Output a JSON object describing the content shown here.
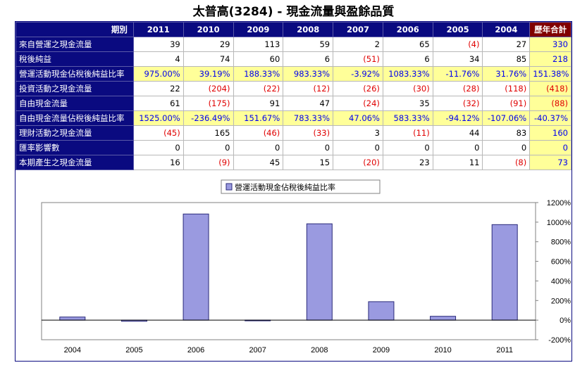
{
  "title": "太普高(3284) -  現金流量與盈餘品質",
  "table": {
    "corner": "期別",
    "years": [
      "2011",
      "2010",
      "2009",
      "2008",
      "2007",
      "2006",
      "2005",
      "2004"
    ],
    "total_header": "歷年合計",
    "rows": [
      {
        "label": "來自營運之現金流量",
        "highlight": false,
        "cells": [
          {
            "t": "39",
            "c": "black"
          },
          {
            "t": "29",
            "c": "black"
          },
          {
            "t": "113",
            "c": "black"
          },
          {
            "t": "59",
            "c": "black"
          },
          {
            "t": "2",
            "c": "black"
          },
          {
            "t": "65",
            "c": "black"
          },
          {
            "t": "(4)",
            "c": "red"
          },
          {
            "t": "27",
            "c": "black"
          }
        ],
        "total": {
          "t": "330",
          "c": "blue"
        }
      },
      {
        "label": "稅後純益",
        "highlight": false,
        "cells": [
          {
            "t": "4",
            "c": "black"
          },
          {
            "t": "74",
            "c": "black"
          },
          {
            "t": "60",
            "c": "black"
          },
          {
            "t": "6",
            "c": "black"
          },
          {
            "t": "(51)",
            "c": "red"
          },
          {
            "t": "6",
            "c": "black"
          },
          {
            "t": "34",
            "c": "black"
          },
          {
            "t": "85",
            "c": "black"
          }
        ],
        "total": {
          "t": "218",
          "c": "blue"
        }
      },
      {
        "label": "營運活動現金佔稅後純益比率",
        "highlight": true,
        "cells": [
          {
            "t": "975.00%",
            "c": "blue"
          },
          {
            "t": "39.19%",
            "c": "blue"
          },
          {
            "t": "188.33%",
            "c": "blue"
          },
          {
            "t": "983.33%",
            "c": "blue"
          },
          {
            "t": "-3.92%",
            "c": "blue"
          },
          {
            "t": "1083.33%",
            "c": "blue"
          },
          {
            "t": "-11.76%",
            "c": "blue"
          },
          {
            "t": "31.76%",
            "c": "blue"
          }
        ],
        "total": {
          "t": "151.38%",
          "c": "blue"
        }
      },
      {
        "label": "投資活動之現金流量",
        "highlight": false,
        "cells": [
          {
            "t": "22",
            "c": "black"
          },
          {
            "t": "(204)",
            "c": "red"
          },
          {
            "t": "(22)",
            "c": "red"
          },
          {
            "t": "(12)",
            "c": "red"
          },
          {
            "t": "(26)",
            "c": "red"
          },
          {
            "t": "(30)",
            "c": "red"
          },
          {
            "t": "(28)",
            "c": "red"
          },
          {
            "t": "(118)",
            "c": "red"
          }
        ],
        "total": {
          "t": "(418)",
          "c": "red"
        }
      },
      {
        "label": "自由現金流量",
        "highlight": false,
        "cells": [
          {
            "t": "61",
            "c": "black"
          },
          {
            "t": "(175)",
            "c": "red"
          },
          {
            "t": "91",
            "c": "black"
          },
          {
            "t": "47",
            "c": "black"
          },
          {
            "t": "(24)",
            "c": "red"
          },
          {
            "t": "35",
            "c": "black"
          },
          {
            "t": "(32)",
            "c": "red"
          },
          {
            "t": "(91)",
            "c": "red"
          }
        ],
        "total": {
          "t": "(88)",
          "c": "red"
        }
      },
      {
        "label": "自由現金流量佔稅後純益比率",
        "highlight": true,
        "cells": [
          {
            "t": "1525.00%",
            "c": "blue"
          },
          {
            "t": "-236.49%",
            "c": "blue"
          },
          {
            "t": "151.67%",
            "c": "blue"
          },
          {
            "t": "783.33%",
            "c": "blue"
          },
          {
            "t": "47.06%",
            "c": "blue"
          },
          {
            "t": "583.33%",
            "c": "blue"
          },
          {
            "t": "-94.12%",
            "c": "blue"
          },
          {
            "t": "-107.06%",
            "c": "blue"
          }
        ],
        "total": {
          "t": "-40.37%",
          "c": "blue"
        }
      },
      {
        "label": "理財活動之現金流量",
        "highlight": false,
        "cells": [
          {
            "t": "(45)",
            "c": "red"
          },
          {
            "t": "165",
            "c": "black"
          },
          {
            "t": "(46)",
            "c": "red"
          },
          {
            "t": "(33)",
            "c": "red"
          },
          {
            "t": "3",
            "c": "black"
          },
          {
            "t": "(11)",
            "c": "red"
          },
          {
            "t": "44",
            "c": "black"
          },
          {
            "t": "83",
            "c": "black"
          }
        ],
        "total": {
          "t": "160",
          "c": "blue"
        }
      },
      {
        "label": "匯率影響數",
        "highlight": false,
        "cells": [
          {
            "t": "0",
            "c": "black"
          },
          {
            "t": "0",
            "c": "black"
          },
          {
            "t": "0",
            "c": "black"
          },
          {
            "t": "0",
            "c": "black"
          },
          {
            "t": "0",
            "c": "black"
          },
          {
            "t": "0",
            "c": "black"
          },
          {
            "t": "0",
            "c": "black"
          },
          {
            "t": "0",
            "c": "black"
          }
        ],
        "total": {
          "t": "0",
          "c": "blue"
        }
      },
      {
        "label": "本期產生之現金流量",
        "highlight": false,
        "cells": [
          {
            "t": "16",
            "c": "black"
          },
          {
            "t": "(9)",
            "c": "red"
          },
          {
            "t": "45",
            "c": "black"
          },
          {
            "t": "15",
            "c": "black"
          },
          {
            "t": "(20)",
            "c": "red"
          },
          {
            "t": "23",
            "c": "black"
          },
          {
            "t": "11",
            "c": "black"
          },
          {
            "t": "(8)",
            "c": "red"
          }
        ],
        "total": {
          "t": "73",
          "c": "blue"
        }
      }
    ]
  },
  "chart_data": {
    "type": "bar",
    "title": "",
    "xlabel": "",
    "ylabel": "",
    "categories": [
      "2004",
      "2005",
      "2006",
      "2007",
      "2008",
      "2009",
      "2010",
      "2011"
    ],
    "series": [
      {
        "name": "營運活動現金佔稅後純益比率",
        "values": [
          31.76,
          -11.76,
          1083.33,
          -3.92,
          983.33,
          188.33,
          39.19,
          975.0
        ]
      }
    ],
    "ylim": [
      -200,
      1200
    ],
    "yticks": [
      -200,
      0,
      200,
      400,
      600,
      800,
      1000,
      1200
    ],
    "ytick_labels": [
      "-200%",
      "0%",
      "200%",
      "400%",
      "600%",
      "800%",
      "1000%",
      "1200%"
    ],
    "y_axis_side": "right",
    "grid": false,
    "legend_position": "top",
    "colors": {
      "bar_fill": "#9a9ae0",
      "bar_stroke": "#2a2a7a",
      "plot_border": "#808080"
    }
  }
}
